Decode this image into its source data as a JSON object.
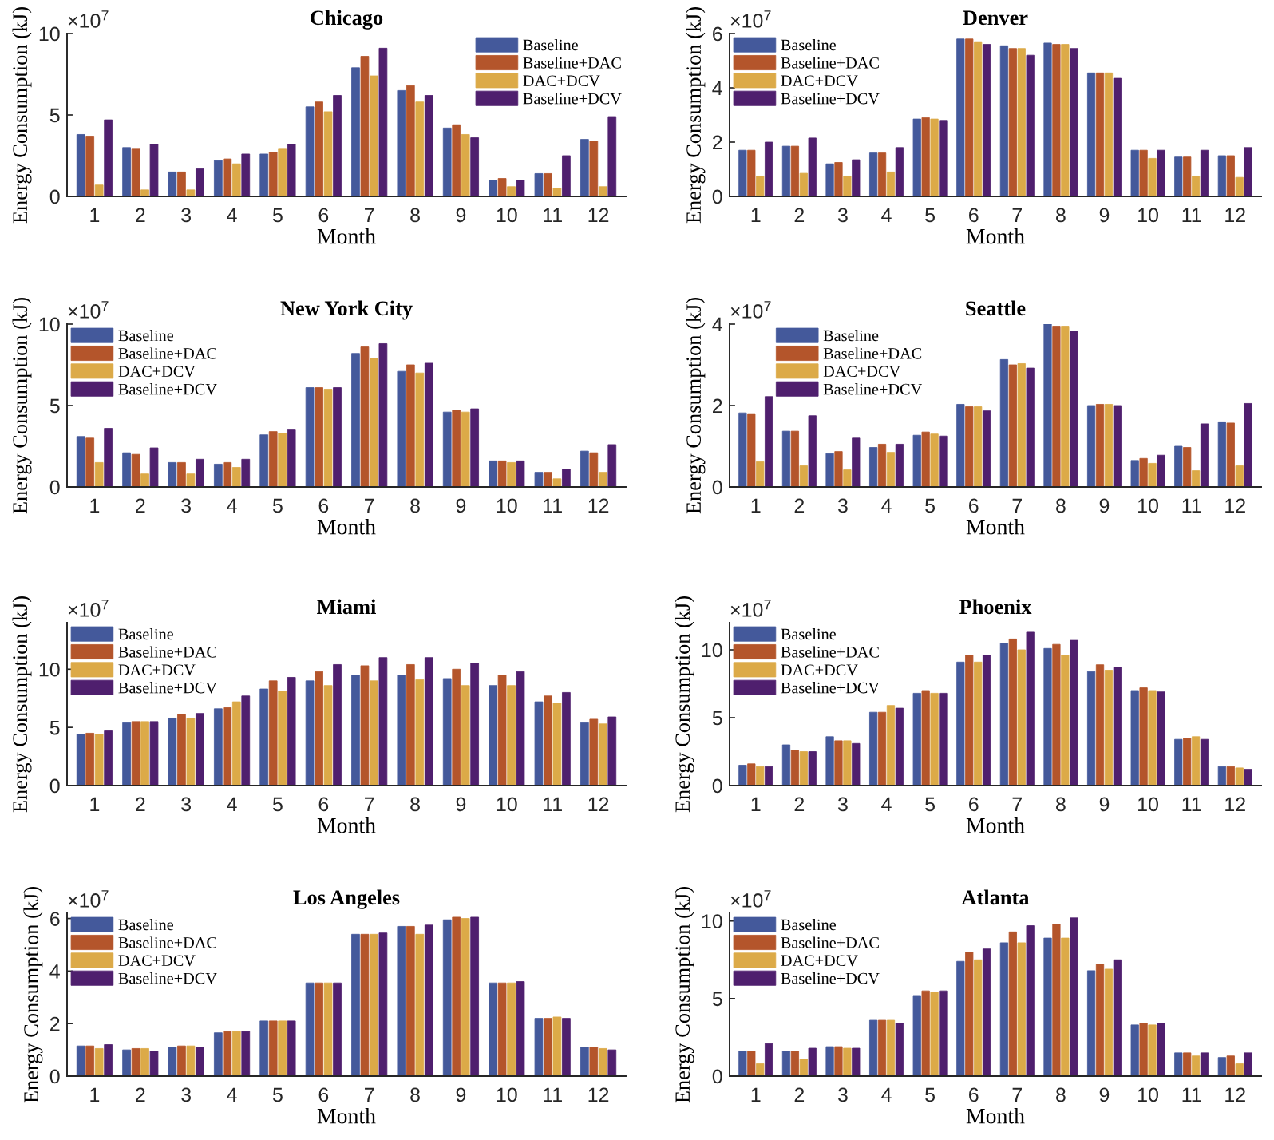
{
  "chart_data": [
    {
      "type": "bar",
      "title": "Chicago",
      "xlabel": "Month",
      "ylabel": "Energy Consumption (kJ)",
      "annotations": [
        "×10$^{7}$"
      ],
      "categories": [
        "1",
        "2",
        "3",
        "4",
        "5",
        "6",
        "7",
        "8",
        "9",
        "10",
        "11",
        "12"
      ],
      "ylim": [
        0,
        10
      ],
      "yticks": [
        0,
        5,
        10
      ],
      "legend": "top right",
      "series": [
        {
          "name": "Baseline",
          "color": "#44599b",
          "values": [
            3.8,
            3.0,
            1.5,
            2.2,
            2.6,
            5.5,
            7.9,
            6.5,
            4.2,
            1.0,
            1.4,
            3.5
          ]
        },
        {
          "name": "Baseline+DAC",
          "color": "#b4552b",
          "values": [
            3.7,
            2.9,
            1.5,
            2.3,
            2.7,
            5.8,
            8.6,
            6.8,
            4.4,
            1.1,
            1.4,
            3.4
          ]
        },
        {
          "name": "DAC+DCV",
          "color": "#dcaa48",
          "values": [
            0.7,
            0.4,
            0.4,
            2.0,
            2.9,
            5.2,
            7.4,
            5.8,
            3.8,
            0.6,
            0.5,
            0.6
          ]
        },
        {
          "name": "Baseline+DCV",
          "color": "#4f1f6e",
          "values": [
            4.7,
            3.2,
            1.7,
            2.6,
            3.2,
            6.2,
            9.1,
            6.2,
            3.6,
            1.0,
            2.5,
            4.9
          ]
        }
      ]
    },
    {
      "type": "bar",
      "title": "Denver",
      "xlabel": "Month",
      "ylabel": "Energy Consumption (kJ)",
      "annotations": [
        "×10$^{7}$"
      ],
      "categories": [
        "1",
        "2",
        "3",
        "4",
        "5",
        "6",
        "7",
        "8",
        "9",
        "10",
        "11",
        "12"
      ],
      "ylim": [
        0,
        6
      ],
      "yticks": [
        0,
        2,
        4,
        6
      ],
      "legend": "top left",
      "series": [
        {
          "name": "Baseline",
          "color": "#44599b",
          "values": [
            1.7,
            1.85,
            1.2,
            1.6,
            2.85,
            5.8,
            5.55,
            5.65,
            4.55,
            1.7,
            1.45,
            1.5
          ]
        },
        {
          "name": "Baseline+DAC",
          "color": "#b4552b",
          "values": [
            1.7,
            1.85,
            1.25,
            1.6,
            2.9,
            5.8,
            5.45,
            5.6,
            4.55,
            1.7,
            1.45,
            1.5
          ]
        },
        {
          "name": "DAC+DCV",
          "color": "#dcaa48",
          "values": [
            0.75,
            0.85,
            0.75,
            0.9,
            2.85,
            5.7,
            5.45,
            5.6,
            4.55,
            1.4,
            0.75,
            0.7
          ]
        },
        {
          "name": "Baseline+DCV",
          "color": "#4f1f6e",
          "values": [
            2.0,
            2.15,
            1.35,
            1.8,
            2.8,
            5.6,
            5.2,
            5.45,
            4.35,
            1.7,
            1.7,
            1.8
          ]
        }
      ]
    },
    {
      "type": "bar",
      "title": "New York City",
      "xlabel": "Month",
      "ylabel": "Energy Consumption (kJ)",
      "annotations": [
        "×10$^{7}$"
      ],
      "categories": [
        "1",
        "2",
        "3",
        "4",
        "5",
        "6",
        "7",
        "8",
        "9",
        "10",
        "11",
        "12"
      ],
      "ylim": [
        0,
        10
      ],
      "yticks": [
        0,
        5,
        10
      ],
      "legend": "top left",
      "series": [
        {
          "name": "Baseline",
          "color": "#44599b",
          "values": [
            3.1,
            2.1,
            1.5,
            1.4,
            3.2,
            6.1,
            8.2,
            7.1,
            4.6,
            1.6,
            0.9,
            2.2
          ]
        },
        {
          "name": "Baseline+DAC",
          "color": "#b4552b",
          "values": [
            3.0,
            2.0,
            1.5,
            1.5,
            3.4,
            6.1,
            8.6,
            7.5,
            4.7,
            1.6,
            0.9,
            2.1
          ]
        },
        {
          "name": "DAC+DCV",
          "color": "#dcaa48",
          "values": [
            1.5,
            0.8,
            0.8,
            1.2,
            3.3,
            6.0,
            7.9,
            7.0,
            4.6,
            1.5,
            0.5,
            0.9
          ]
        },
        {
          "name": "Baseline+DCV",
          "color": "#4f1f6e",
          "values": [
            3.6,
            2.4,
            1.7,
            1.7,
            3.5,
            6.1,
            8.8,
            7.6,
            4.8,
            1.6,
            1.1,
            2.6
          ]
        }
      ]
    },
    {
      "type": "bar",
      "title": "Seattle",
      "xlabel": "Month",
      "ylabel": "Energy Consumption (kJ)",
      "annotations": [
        "×10$^{7}$"
      ],
      "categories": [
        "1",
        "2",
        "3",
        "4",
        "5",
        "6",
        "7",
        "8",
        "9",
        "10",
        "11",
        "12"
      ],
      "ylim": [
        0,
        4
      ],
      "yticks": [
        0,
        2,
        4
      ],
      "legend": "top left",
      "series": [
        {
          "name": "Baseline",
          "color": "#44599b",
          "values": [
            1.82,
            1.37,
            0.82,
            0.97,
            1.27,
            2.03,
            3.13,
            4.0,
            2.0,
            0.65,
            1.0,
            1.6
          ]
        },
        {
          "name": "Baseline+DAC",
          "color": "#b4552b",
          "values": [
            1.8,
            1.37,
            0.87,
            1.05,
            1.35,
            1.97,
            3.0,
            3.95,
            2.03,
            0.7,
            0.97,
            1.57
          ]
        },
        {
          "name": "DAC+DCV",
          "color": "#dcaa48",
          "values": [
            0.62,
            0.52,
            0.42,
            0.85,
            1.3,
            1.97,
            3.03,
            3.95,
            2.03,
            0.58,
            0.4,
            0.52
          ]
        },
        {
          "name": "Baseline+DCV",
          "color": "#4f1f6e",
          "values": [
            2.22,
            1.75,
            1.2,
            1.05,
            1.25,
            1.87,
            2.92,
            3.83,
            2.0,
            0.78,
            1.55,
            2.05
          ]
        }
      ]
    },
    {
      "type": "bar",
      "title": "Miami",
      "xlabel": "Month",
      "ylabel": "Energy Consumption (kJ)",
      "annotations": [
        "×10$^{7}$"
      ],
      "categories": [
        "1",
        "2",
        "3",
        "4",
        "5",
        "6",
        "7",
        "8",
        "9",
        "10",
        "11",
        "12"
      ],
      "ylim": [
        0,
        14
      ],
      "yticks": [
        0,
        5,
        10
      ],
      "legend": "top left",
      "series": [
        {
          "name": "Baseline",
          "color": "#44599b",
          "values": [
            4.4,
            5.4,
            5.8,
            6.6,
            8.3,
            9.0,
            9.5,
            9.5,
            9.2,
            8.6,
            7.2,
            5.4
          ]
        },
        {
          "name": "Baseline+DAC",
          "color": "#b4552b",
          "values": [
            4.5,
            5.5,
            6.1,
            6.7,
            9.0,
            9.8,
            10.3,
            10.4,
            10.0,
            9.5,
            7.7,
            5.7
          ]
        },
        {
          "name": "DAC+DCV",
          "color": "#dcaa48",
          "values": [
            4.4,
            5.5,
            5.8,
            7.2,
            8.1,
            8.6,
            9.0,
            9.1,
            8.6,
            8.6,
            7.1,
            5.3
          ]
        },
        {
          "name": "Baseline+DCV",
          "color": "#4f1f6e",
          "values": [
            4.7,
            5.5,
            6.2,
            7.7,
            9.3,
            10.4,
            11.0,
            11.0,
            10.5,
            9.8,
            8.0,
            5.9
          ]
        }
      ]
    },
    {
      "type": "bar",
      "title": "Phoenix",
      "xlabel": "Month",
      "ylabel": "Energy Consumption (kJ)",
      "annotations": [
        "×10$^{7}$"
      ],
      "categories": [
        "1",
        "2",
        "3",
        "4",
        "5",
        "6",
        "7",
        "8",
        "9",
        "10",
        "11",
        "12"
      ],
      "ylim": [
        0,
        12
      ],
      "yticks": [
        0,
        5,
        10
      ],
      "legend": "top left",
      "series": [
        {
          "name": "Baseline",
          "color": "#44599b",
          "values": [
            1.5,
            3.0,
            3.6,
            5.4,
            6.8,
            9.1,
            10.5,
            10.1,
            8.4,
            7.0,
            3.4,
            1.4
          ]
        },
        {
          "name": "Baseline+DAC",
          "color": "#b4552b",
          "values": [
            1.6,
            2.6,
            3.3,
            5.4,
            7.0,
            9.6,
            10.8,
            10.4,
            8.9,
            7.2,
            3.5,
            1.4
          ]
        },
        {
          "name": "DAC+DCV",
          "color": "#dcaa48",
          "values": [
            1.4,
            2.5,
            3.3,
            5.9,
            6.8,
            9.1,
            10.0,
            9.6,
            8.5,
            7.0,
            3.6,
            1.3
          ]
        },
        {
          "name": "Baseline+DCV",
          "color": "#4f1f6e",
          "values": [
            1.4,
            2.5,
            3.1,
            5.7,
            6.8,
            9.6,
            11.3,
            10.7,
            8.7,
            6.9,
            3.4,
            1.2
          ]
        }
      ]
    },
    {
      "type": "bar",
      "title": "Los Angeles",
      "xlabel": "Month",
      "ylabel": "Energy Consumption (kJ)",
      "annotations": [
        "×10$^{7}$"
      ],
      "categories": [
        "1",
        "2",
        "3",
        "4",
        "5",
        "6",
        "7",
        "8",
        "9",
        "10",
        "11",
        "12"
      ],
      "ylim": [
        0,
        6.2
      ],
      "yticks": [
        0,
        2,
        4,
        6
      ],
      "legend": "top left",
      "series": [
        {
          "name": "Baseline",
          "color": "#44599b",
          "values": [
            1.15,
            1.0,
            1.1,
            1.65,
            2.1,
            3.55,
            5.4,
            5.7,
            5.95,
            3.55,
            2.2,
            1.1
          ]
        },
        {
          "name": "Baseline+DAC",
          "color": "#b4552b",
          "values": [
            1.15,
            1.05,
            1.15,
            1.7,
            2.1,
            3.55,
            5.4,
            5.7,
            6.05,
            3.55,
            2.2,
            1.1
          ]
        },
        {
          "name": "DAC+DCV",
          "color": "#dcaa48",
          "values": [
            1.05,
            1.05,
            1.15,
            1.7,
            2.1,
            3.55,
            5.4,
            5.4,
            6.0,
            3.55,
            2.25,
            1.05
          ]
        },
        {
          "name": "Baseline+DCV",
          "color": "#4f1f6e",
          "values": [
            1.2,
            0.95,
            1.1,
            1.7,
            2.1,
            3.55,
            5.45,
            5.75,
            6.05,
            3.6,
            2.2,
            1.0
          ]
        }
      ]
    },
    {
      "type": "bar",
      "title": "Atlanta",
      "xlabel": "Month",
      "ylabel": "Energy Consumption (kJ)",
      "annotations": [
        "×10$^{7}$"
      ],
      "categories": [
        "1",
        "2",
        "3",
        "4",
        "5",
        "6",
        "7",
        "8",
        "9",
        "10",
        "11",
        "12"
      ],
      "ylim": [
        0,
        10.5
      ],
      "yticks": [
        0,
        5,
        10
      ],
      "legend": "top left",
      "series": [
        {
          "name": "Baseline",
          "color": "#44599b",
          "values": [
            1.6,
            1.6,
            1.9,
            3.6,
            5.2,
            7.4,
            8.6,
            8.9,
            6.8,
            3.3,
            1.5,
            1.2
          ]
        },
        {
          "name": "Baseline+DAC",
          "color": "#b4552b",
          "values": [
            1.6,
            1.6,
            1.9,
            3.6,
            5.5,
            8.0,
            9.3,
            9.8,
            7.2,
            3.4,
            1.5,
            1.3
          ]
        },
        {
          "name": "DAC+DCV",
          "color": "#dcaa48",
          "values": [
            0.8,
            1.1,
            1.8,
            3.6,
            5.4,
            7.5,
            8.6,
            8.9,
            6.9,
            3.3,
            1.3,
            0.8
          ]
        },
        {
          "name": "Baseline+DCV",
          "color": "#4f1f6e",
          "values": [
            2.1,
            1.8,
            1.8,
            3.4,
            5.5,
            8.2,
            9.7,
            10.2,
            7.5,
            3.4,
            1.5,
            1.5
          ]
        }
      ]
    }
  ]
}
